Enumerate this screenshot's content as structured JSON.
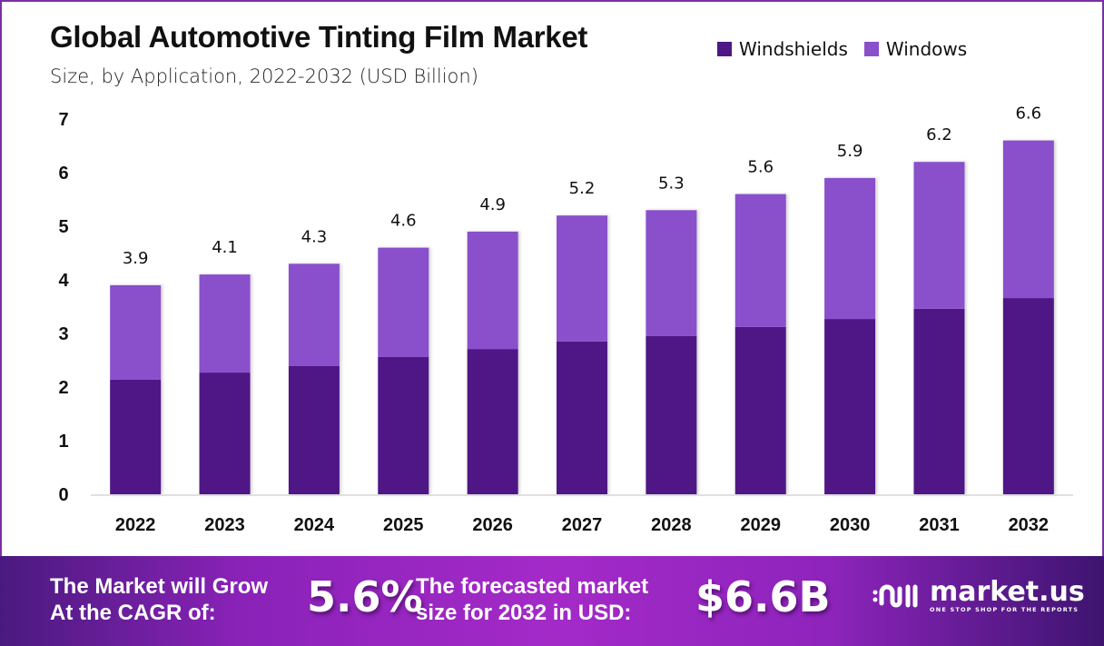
{
  "header": {
    "title": "Global Automotive Tinting Film Market",
    "subtitle": "Size, by Application, 2022-2032 (USD Billion)"
  },
  "legend": [
    {
      "label": "Windshields",
      "color": "#4f1785"
    },
    {
      "label": "Windows",
      "color": "#8a4fcb"
    }
  ],
  "chart_data": {
    "type": "bar",
    "stacked": true,
    "title": "Global Automotive Tinting Film Market",
    "subtitle": "Size, by Application, 2022-2032 (USD Billion)",
    "xlabel": "",
    "ylabel": "",
    "categories": [
      "2022",
      "2023",
      "2024",
      "2025",
      "2026",
      "2027",
      "2028",
      "2029",
      "2030",
      "2031",
      "2032"
    ],
    "series": [
      {
        "name": "Windshields",
        "color": "#4f1785",
        "values": [
          2.14,
          2.27,
          2.39,
          2.56,
          2.71,
          2.85,
          2.95,
          3.12,
          3.27,
          3.46,
          3.66
        ]
      },
      {
        "name": "Windows",
        "color": "#8a4fcb",
        "values": [
          1.76,
          1.83,
          1.91,
          2.04,
          2.19,
          2.35,
          2.35,
          2.48,
          2.63,
          2.74,
          2.94
        ]
      }
    ],
    "totals": [
      3.9,
      4.1,
      4.3,
      4.6,
      4.9,
      5.2,
      5.3,
      5.6,
      5.9,
      6.2,
      6.6
    ],
    "total_labels": [
      "3.9",
      "4.1",
      "4.3",
      "4.6",
      "4.9",
      "5.2",
      "5.3",
      "5.6",
      "5.9",
      "6.2",
      "6.6"
    ],
    "yticks": [
      0,
      1,
      2,
      3,
      4,
      5,
      6,
      7
    ],
    "ylim": [
      0,
      7
    ],
    "grid": false,
    "legend_position": "top-right"
  },
  "footer": {
    "cagr_label_line1": "The Market will Grow",
    "cagr_label_line2": "At the CAGR of:",
    "cagr_value": "5.6%",
    "forecast_label_line1": "The forecasted market",
    "forecast_label_line2": "size for 2032 in USD:",
    "forecast_value": "$6.6B",
    "brand_name": "market.us",
    "brand_tagline": "ONE STOP SHOP FOR THE REPORTS"
  }
}
